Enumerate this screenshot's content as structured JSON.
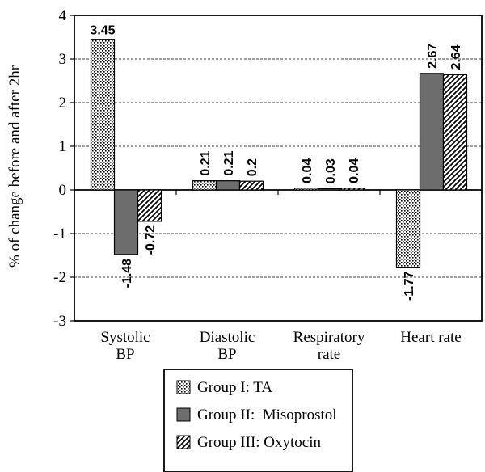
{
  "chart_data": {
    "type": "bar",
    "title": "",
    "xlabel": "",
    "ylabel": "% of change before and after 2hr",
    "ylim": [
      -3,
      4
    ],
    "yticks": [
      -3,
      -2,
      -1,
      0,
      1,
      2,
      3,
      4
    ],
    "grid": "horizontal dashed",
    "legend_placement": "bottom-center",
    "categories": [
      [
        "Systolic",
        "BP"
      ],
      [
        "Diastolic",
        "BP"
      ],
      [
        "Respiratory",
        "rate"
      ],
      [
        "Heart rate"
      ]
    ],
    "series": [
      {
        "name": "Group I: TA",
        "pattern": "dots",
        "values": [
          3.45,
          0.21,
          0.04,
          -1.77
        ]
      },
      {
        "name": "Group II:  Misoprostol",
        "pattern": "solid",
        "color": "#6d6d6d",
        "values": [
          -1.48,
          0.21,
          0.03,
          2.67
        ]
      },
      {
        "name": "Group III: Oxytocin",
        "pattern": "diagonal",
        "values": [
          -0.72,
          0.2,
          0.04,
          2.64
        ]
      }
    ],
    "value_labels": [
      [
        "3.45",
        "-1.48",
        "-0.72"
      ],
      [
        "0.21",
        "0.21",
        "0.2"
      ],
      [
        "0.04",
        "0.03",
        "0.04"
      ],
      [
        "-1.77",
        "2.67",
        "2.64"
      ]
    ]
  }
}
